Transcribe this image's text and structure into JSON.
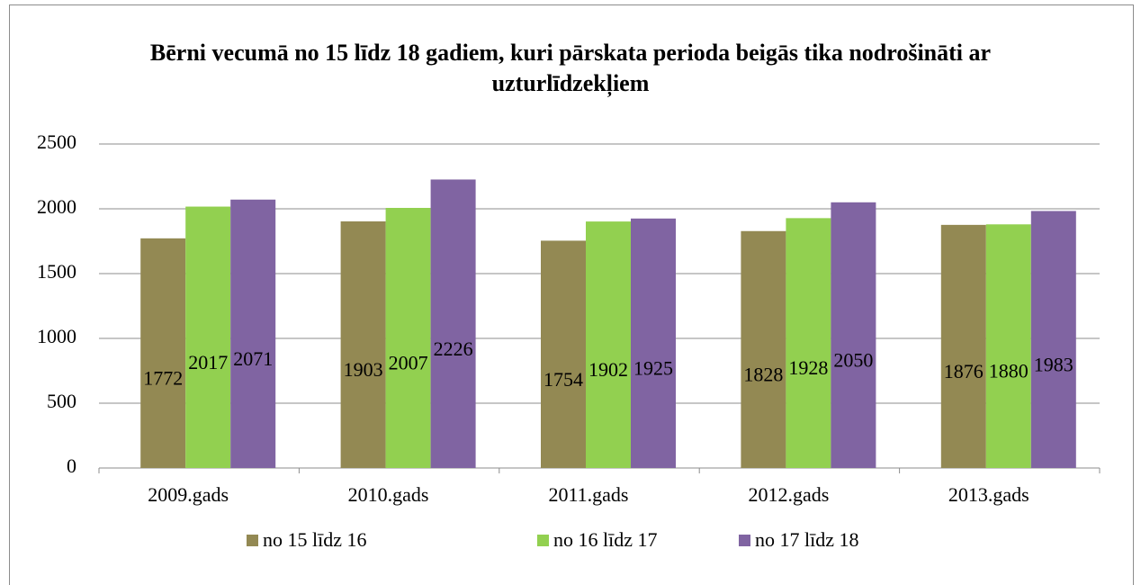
{
  "chart_data": {
    "type": "bar",
    "title": "Bērni vecumā no 15 līdz 18 gadiem, kuri pārskata perioda beigās tika nodrošināti ar uzturlīdzekļiem",
    "categories": [
      "2009.gads",
      "2010.gads",
      "2011.gads",
      "2012.gads",
      "2013.gads"
    ],
    "series": [
      {
        "name": "no 15 līdz 16",
        "color": "#938953",
        "values": [
          1772,
          1903,
          1754,
          1828,
          1876
        ]
      },
      {
        "name": "no 16 līdz 17",
        "color": "#92d050",
        "values": [
          2017,
          2007,
          1902,
          1928,
          1880
        ]
      },
      {
        "name": "no 17 līdz 18",
        "color": "#8064a2",
        "values": [
          2071,
          2226,
          1925,
          2050,
          1983
        ]
      }
    ],
    "ylim": [
      0,
      2500
    ],
    "yticks": [
      0,
      500,
      1000,
      1500,
      2000,
      2500
    ],
    "grid": true,
    "legend": "bottom"
  }
}
